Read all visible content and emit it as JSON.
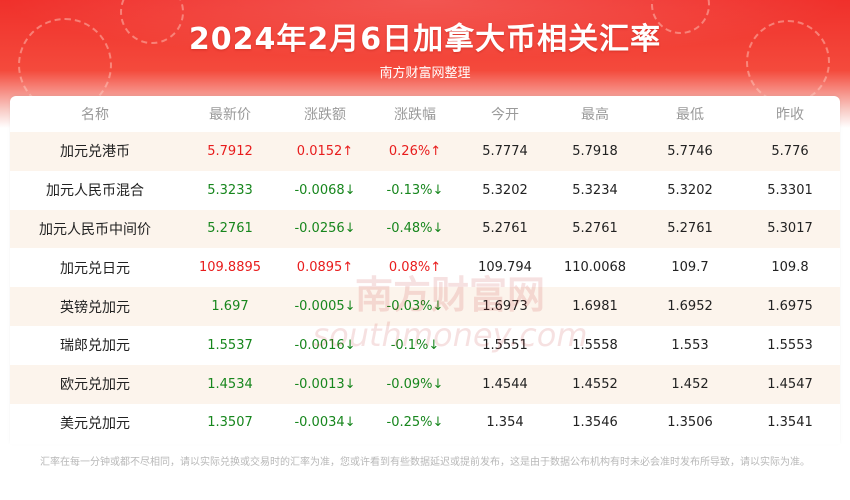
{
  "header": {
    "title": "2024年2月6日加拿大币相关汇率",
    "subtitle": "南方财富网整理"
  },
  "table": {
    "columns": [
      "名称",
      "最新价",
      "涨跌额",
      "涨跌幅",
      "今开",
      "最高",
      "最低",
      "昨收"
    ],
    "rows": [
      {
        "name": "加元兑港币",
        "last": "5.7912",
        "change": "0.0152↑",
        "pct": "0.26%↑",
        "open": "5.7774",
        "high": "5.7918",
        "low": "5.7746",
        "prev": "5.776",
        "trend": "up"
      },
      {
        "name": "加元人民币混合",
        "last": "5.3233",
        "change": "-0.0068↓",
        "pct": "-0.13%↓",
        "open": "5.3202",
        "high": "5.3234",
        "low": "5.3202",
        "prev": "5.3301",
        "trend": "down"
      },
      {
        "name": "加元人民币中间价",
        "last": "5.2761",
        "change": "-0.0256↓",
        "pct": "-0.48%↓",
        "open": "5.2761",
        "high": "5.2761",
        "low": "5.2761",
        "prev": "5.3017",
        "trend": "down"
      },
      {
        "name": "加元兑日元",
        "last": "109.8895",
        "change": "0.0895↑",
        "pct": "0.08%↑",
        "open": "109.794",
        "high": "110.0068",
        "low": "109.7",
        "prev": "109.8",
        "trend": "up"
      },
      {
        "name": "英镑兑加元",
        "last": "1.697",
        "change": "-0.0005↓",
        "pct": "-0.03%↓",
        "open": "1.6973",
        "high": "1.6981",
        "low": "1.6952",
        "prev": "1.6975",
        "trend": "down"
      },
      {
        "name": "瑞郎兑加元",
        "last": "1.5537",
        "change": "-0.0016↓",
        "pct": "-0.1%↓",
        "open": "1.5551",
        "high": "1.5558",
        "low": "1.553",
        "prev": "1.5553",
        "trend": "down"
      },
      {
        "name": "欧元兑加元",
        "last": "1.4534",
        "change": "-0.0013↓",
        "pct": "-0.09%↓",
        "open": "1.4544",
        "high": "1.4552",
        "low": "1.452",
        "prev": "1.4547",
        "trend": "down"
      },
      {
        "name": "美元兑加元",
        "last": "1.3507",
        "change": "-0.0034↓",
        "pct": "-0.25%↓",
        "open": "1.354",
        "high": "1.3546",
        "low": "1.3506",
        "prev": "1.3541",
        "trend": "down"
      }
    ]
  },
  "watermark": {
    "cn": "南方财富网",
    "en": "southmoney.com"
  },
  "footer": {
    "disclaimer": "汇率在每一分钟或都不尽相同，请以实际兑换或交易时的汇率为准，您或许看到有些数据延迟或提前发布，这是由于数据公布机构有时未必会准时发布所导致，请以实际为准。"
  },
  "colors": {
    "banner_red": "#f0302b",
    "up": "#e81c1c",
    "down": "#17861d",
    "row_stripe": "#fcf4ec",
    "header_text": "#9a9a9a"
  }
}
